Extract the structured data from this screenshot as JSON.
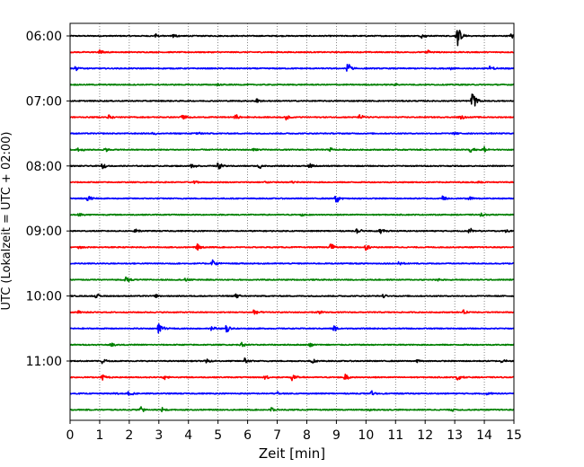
{
  "chart_data": {
    "type": "line",
    "title": "",
    "xlabel": "Zeit  [min]",
    "ylabel": "UTC (Lokalzeit = UTC + 02:00)",
    "xlim": [
      0,
      15
    ],
    "x_ticks": [
      "0",
      "1",
      "2",
      "3",
      "4",
      "5",
      "6",
      "7",
      "8",
      "9",
      "10",
      "11",
      "12",
      "13",
      "14",
      "15"
    ],
    "y_tick_labels": [
      "06:00",
      "07:00",
      "08:00",
      "09:00",
      "10:00",
      "11:00"
    ],
    "row_interval_minutes": 15,
    "row_count": 24,
    "row_colors": [
      "#000000",
      "#ff0000",
      "#0000ff",
      "#008000"
    ],
    "grid": "vertical-dotted",
    "rows": [
      {
        "start": "06:00",
        "events": [
          [
            2.9,
            0.2
          ],
          [
            3.5,
            0.2
          ],
          [
            11.9,
            0.25
          ],
          [
            13.1,
            1.0
          ],
          [
            14.9,
            0.3
          ]
        ]
      },
      {
        "start": "06:15",
        "events": [
          [
            1.0,
            0.3
          ],
          [
            12.1,
            0.2
          ]
        ]
      },
      {
        "start": "06:30",
        "events": [
          [
            0.2,
            0.25
          ],
          [
            9.4,
            0.75
          ],
          [
            12.8,
            0.25
          ],
          [
            14.2,
            0.3
          ]
        ]
      },
      {
        "start": "06:45",
        "events": [
          [
            5.0,
            0.15
          ],
          [
            11.0,
            0.15
          ]
        ]
      },
      {
        "start": "07:00",
        "events": [
          [
            6.3,
            0.3
          ],
          [
            13.6,
            1.0
          ]
        ]
      },
      {
        "start": "07:15",
        "events": [
          [
            1.3,
            0.3
          ],
          [
            3.8,
            0.3
          ],
          [
            5.6,
            0.3
          ],
          [
            7.3,
            0.3
          ],
          [
            9.8,
            0.3
          ],
          [
            13.2,
            0.25
          ]
        ]
      },
      {
        "start": "07:30",
        "events": [
          [
            2.8,
            0.2
          ],
          [
            4.3,
            0.2
          ],
          [
            13.0,
            0.2
          ]
        ]
      },
      {
        "start": "07:45",
        "events": [
          [
            0.3,
            0.25
          ],
          [
            1.2,
            0.2
          ],
          [
            6.2,
            0.2
          ],
          [
            8.8,
            0.2
          ],
          [
            13.5,
            0.45
          ],
          [
            14.0,
            0.35
          ]
        ]
      },
      {
        "start": "08:00",
        "events": [
          [
            1.1,
            0.3
          ],
          [
            4.1,
            0.3
          ],
          [
            5.0,
            0.4
          ],
          [
            6.4,
            0.3
          ],
          [
            8.1,
            0.25
          ]
        ]
      },
      {
        "start": "08:15",
        "events": [
          [
            4.2,
            0.2
          ],
          [
            6.5,
            0.2
          ],
          [
            7.5,
            0.2
          ],
          [
            13.8,
            0.2
          ]
        ]
      },
      {
        "start": "08:30",
        "events": [
          [
            0.6,
            0.3
          ],
          [
            9.0,
            0.6
          ],
          [
            12.6,
            0.3
          ],
          [
            13.5,
            0.2
          ]
        ]
      },
      {
        "start": "08:45",
        "events": [
          [
            0.3,
            0.2
          ],
          [
            7.8,
            0.25
          ],
          [
            13.9,
            0.2
          ]
        ]
      },
      {
        "start": "09:00",
        "events": [
          [
            2.2,
            0.2
          ],
          [
            9.7,
            0.3
          ],
          [
            10.5,
            0.3
          ],
          [
            13.5,
            0.35
          ],
          [
            14.7,
            0.2
          ]
        ]
      },
      {
        "start": "09:15",
        "events": [
          [
            0.3,
            0.25
          ],
          [
            4.3,
            0.3
          ],
          [
            8.8,
            0.55
          ],
          [
            10.0,
            0.3
          ]
        ]
      },
      {
        "start": "09:30",
        "events": [
          [
            4.8,
            0.5
          ],
          [
            11.1,
            0.2
          ]
        ]
      },
      {
        "start": "09:45",
        "events": [
          [
            1.9,
            0.35
          ],
          [
            3.9,
            0.2
          ],
          [
            12.4,
            0.2
          ]
        ]
      },
      {
        "start": "10:00",
        "events": [
          [
            0.9,
            0.25
          ],
          [
            2.9,
            0.2
          ],
          [
            5.6,
            0.25
          ],
          [
            10.6,
            0.2
          ]
        ]
      },
      {
        "start": "10:15",
        "events": [
          [
            0.3,
            0.2
          ],
          [
            6.2,
            0.35
          ],
          [
            8.4,
            0.25
          ],
          [
            13.3,
            0.2
          ]
        ]
      },
      {
        "start": "10:30",
        "events": [
          [
            3.0,
            0.55
          ],
          [
            4.8,
            0.3
          ],
          [
            5.3,
            0.45
          ],
          [
            8.9,
            0.35
          ]
        ]
      },
      {
        "start": "10:45",
        "events": [
          [
            1.4,
            0.2
          ],
          [
            5.8,
            0.25
          ],
          [
            8.1,
            0.2
          ]
        ]
      },
      {
        "start": "11:00",
        "events": [
          [
            1.1,
            0.3
          ],
          [
            4.6,
            0.25
          ],
          [
            5.9,
            0.35
          ],
          [
            8.2,
            0.25
          ],
          [
            11.7,
            0.25
          ],
          [
            14.6,
            0.25
          ]
        ]
      },
      {
        "start": "11:15",
        "events": [
          [
            1.1,
            0.3
          ],
          [
            3.2,
            0.25
          ],
          [
            6.6,
            0.3
          ],
          [
            7.5,
            0.4
          ],
          [
            9.3,
            0.35
          ],
          [
            13.1,
            0.3
          ]
        ]
      },
      {
        "start": "11:30",
        "events": [
          [
            1.5,
            0.2
          ],
          [
            2.0,
            0.35
          ],
          [
            7.0,
            0.2
          ],
          [
            10.2,
            0.25
          ],
          [
            14.1,
            0.2
          ]
        ]
      },
      {
        "start": "11:45",
        "events": [
          [
            2.4,
            0.3
          ],
          [
            3.1,
            0.25
          ],
          [
            6.8,
            0.3
          ],
          [
            10.1,
            0.2
          ],
          [
            12.9,
            0.2
          ]
        ]
      }
    ]
  }
}
